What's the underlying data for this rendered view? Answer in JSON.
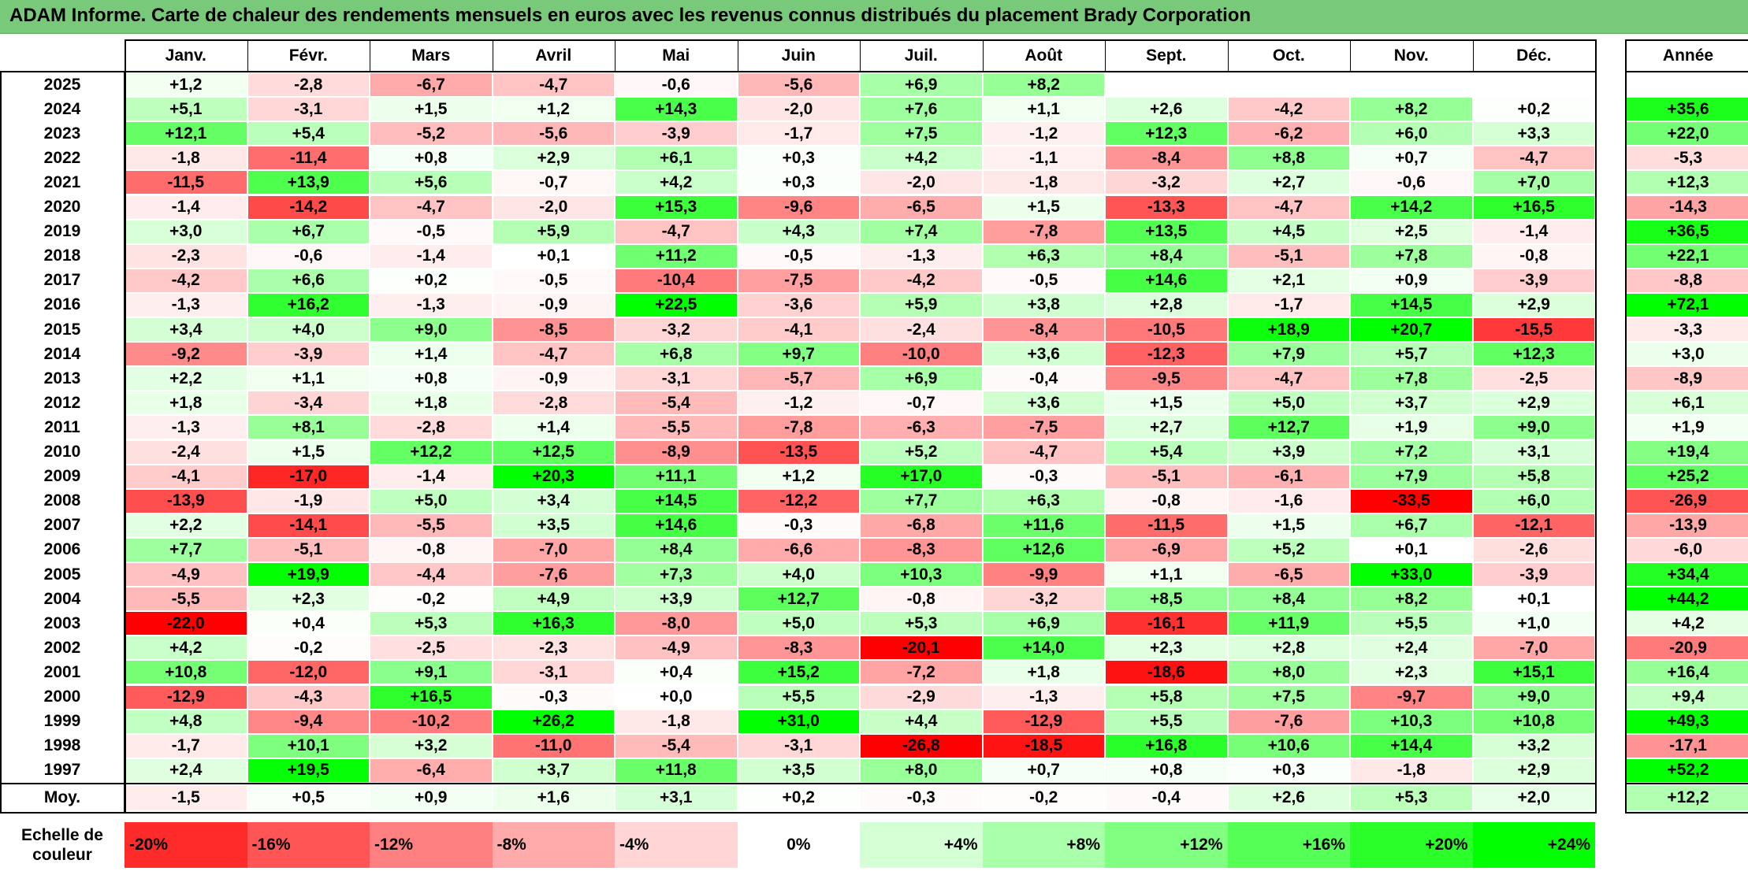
{
  "title": "ADAM Informe. Carte de chaleur des rendements mensuels en euros avec les revenus connus distribués du placement Brady Corporation",
  "colors": {
    "title_bg": "#79c97b",
    "negative": "#ff0000",
    "positive": "#00ff00",
    "neutral": "#ffffff"
  },
  "chart_data": {
    "type": "heatmap",
    "title": "ADAM Informe. Carte de chaleur des rendements mensuels en euros avec les revenus connus distribués du placement Brady Corporation",
    "months": [
      "Janv.",
      "Févr.",
      "Mars",
      "Avril",
      "Mai",
      "Juin",
      "Juil.",
      "Août",
      "Sept.",
      "Oct.",
      "Nov.",
      "Déc."
    ],
    "year_header": "Année",
    "average_label": "Moy.",
    "rows": [
      {
        "year": "2025",
        "values": [
          "+1,2",
          "-2,8",
          "-6,7",
          "-4,7",
          "-0,6",
          "-5,6",
          "+6,9",
          "+8,2",
          "",
          "",
          "",
          ""
        ],
        "annual": ""
      },
      {
        "year": "2024",
        "values": [
          "+5,1",
          "-3,1",
          "+1,5",
          "+1,2",
          "+14,3",
          "-2,0",
          "+7,6",
          "+1,1",
          "+2,6",
          "-4,2",
          "+8,2",
          "+0,2"
        ],
        "annual": "+35,6"
      },
      {
        "year": "2023",
        "values": [
          "+12,1",
          "+5,4",
          "-5,2",
          "-5,6",
          "-3,9",
          "-1,7",
          "+7,5",
          "-1,2",
          "+12,3",
          "-6,2",
          "+6,0",
          "+3,3"
        ],
        "annual": "+22,0"
      },
      {
        "year": "2022",
        "values": [
          "-1,8",
          "-11,4",
          "+0,8",
          "+2,9",
          "+6,1",
          "+0,3",
          "+4,2",
          "-1,1",
          "-8,4",
          "+8,8",
          "+0,7",
          "-4,7"
        ],
        "annual": "-5,3"
      },
      {
        "year": "2021",
        "values": [
          "-11,5",
          "+13,9",
          "+5,6",
          "-0,7",
          "+4,2",
          "+0,3",
          "-2,0",
          "-1,8",
          "-3,2",
          "+2,7",
          "-0,6",
          "+7,0"
        ],
        "annual": "+12,3"
      },
      {
        "year": "2020",
        "values": [
          "-1,4",
          "-14,2",
          "-4,7",
          "-2,0",
          "+15,3",
          "-9,6",
          "-6,5",
          "+1,5",
          "-13,3",
          "-4,7",
          "+14,2",
          "+16,5"
        ],
        "annual": "-14,3"
      },
      {
        "year": "2019",
        "values": [
          "+3,0",
          "+6,7",
          "-0,5",
          "+5,9",
          "-4,7",
          "+4,3",
          "+7,4",
          "-7,8",
          "+13,5",
          "+4,5",
          "+2,5",
          "-1,4"
        ],
        "annual": "+36,5"
      },
      {
        "year": "2018",
        "values": [
          "-2,3",
          "-0,6",
          "-1,4",
          "+0,1",
          "+11,2",
          "-0,5",
          "-1,3",
          "+6,3",
          "+8,4",
          "-5,1",
          "+7,8",
          "-0,8"
        ],
        "annual": "+22,1"
      },
      {
        "year": "2017",
        "values": [
          "-4,2",
          "+6,6",
          "+0,2",
          "-0,5",
          "-10,4",
          "-7,5",
          "-4,2",
          "-0,5",
          "+14,6",
          "+2,1",
          "+0,9",
          "-3,9"
        ],
        "annual": "-8,8"
      },
      {
        "year": "2016",
        "values": [
          "-1,3",
          "+16,2",
          "-1,3",
          "-0,9",
          "+22,5",
          "-3,6",
          "+5,9",
          "+3,8",
          "+2,8",
          "-1,7",
          "+14,5",
          "+2,9"
        ],
        "annual": "+72,1"
      },
      {
        "year": "2015",
        "values": [
          "+3,4",
          "+4,0",
          "+9,0",
          "-8,5",
          "-3,2",
          "-4,1",
          "-2,4",
          "-8,4",
          "-10,5",
          "+18,9",
          "+20,7",
          "-15,5"
        ],
        "annual": "-3,3"
      },
      {
        "year": "2014",
        "values": [
          "-9,2",
          "-3,9",
          "+1,4",
          "-4,7",
          "+6,8",
          "+9,7",
          "-10,0",
          "+3,6",
          "-12,3",
          "+7,9",
          "+5,7",
          "+12,3"
        ],
        "annual": "+3,0"
      },
      {
        "year": "2013",
        "values": [
          "+2,2",
          "+1,1",
          "+0,8",
          "-0,9",
          "-3,1",
          "-5,7",
          "+6,9",
          "-0,4",
          "-9,5",
          "-4,7",
          "+7,8",
          "-2,5"
        ],
        "annual": "-8,9"
      },
      {
        "year": "2012",
        "values": [
          "+1,8",
          "-3,4",
          "+1,8",
          "-2,8",
          "-5,4",
          "-1,2",
          "-0,7",
          "+3,6",
          "+1,5",
          "+5,0",
          "+3,7",
          "+2,9"
        ],
        "annual": "+6,1"
      },
      {
        "year": "2011",
        "values": [
          "-1,3",
          "+8,1",
          "-2,8",
          "+1,4",
          "-5,5",
          "-7,8",
          "-6,3",
          "-7,5",
          "+2,7",
          "+12,7",
          "+1,9",
          "+9,0"
        ],
        "annual": "+1,9"
      },
      {
        "year": "2010",
        "values": [
          "-2,4",
          "+1,5",
          "+12,2",
          "+12,5",
          "-8,9",
          "-13,5",
          "+5,2",
          "-4,7",
          "+5,4",
          "+3,9",
          "+7,2",
          "+3,1"
        ],
        "annual": "+19,4"
      },
      {
        "year": "2009",
        "values": [
          "-4,1",
          "-17,0",
          "-1,4",
          "+20,3",
          "+11,1",
          "+1,2",
          "+17,0",
          "-0,3",
          "-5,1",
          "-6,1",
          "+7,9",
          "+5,8"
        ],
        "annual": "+25,2"
      },
      {
        "year": "2008",
        "values": [
          "-13,9",
          "-1,9",
          "+5,0",
          "+3,4",
          "+14,5",
          "-12,2",
          "+7,7",
          "+6,3",
          "-0,8",
          "-1,6",
          "-33,5",
          "+6,0"
        ],
        "annual": "-26,9"
      },
      {
        "year": "2007",
        "values": [
          "+2,2",
          "-14,1",
          "-5,5",
          "+3,5",
          "+14,6",
          "-0,3",
          "-6,8",
          "+11,6",
          "-11,5",
          "+1,5",
          "+6,7",
          "-12,1"
        ],
        "annual": "-13,9"
      },
      {
        "year": "2006",
        "values": [
          "+7,7",
          "-5,1",
          "-0,8",
          "-7,0",
          "+8,4",
          "-6,6",
          "-8,3",
          "+12,6",
          "-6,9",
          "+5,2",
          "+0,1",
          "-2,6"
        ],
        "annual": "-6,0"
      },
      {
        "year": "2005",
        "values": [
          "-4,9",
          "+19,9",
          "-4,4",
          "-7,6",
          "+7,3",
          "+4,0",
          "+10,3",
          "-9,9",
          "+1,1",
          "-6,5",
          "+33,0",
          "-3,9"
        ],
        "annual": "+34,4"
      },
      {
        "year": "2004",
        "values": [
          "-5,5",
          "+2,3",
          "-0,2",
          "+4,9",
          "+3,9",
          "+12,7",
          "-0,8",
          "-3,2",
          "+8,5",
          "+8,4",
          "+8,2",
          "+0,1"
        ],
        "annual": "+44,2"
      },
      {
        "year": "2003",
        "values": [
          "-22,0",
          "+0,4",
          "+5,3",
          "+16,3",
          "-8,0",
          "+5,0",
          "+5,3",
          "+6,9",
          "-16,1",
          "+11,9",
          "+5,5",
          "+1,0"
        ],
        "annual": "+4,2"
      },
      {
        "year": "2002",
        "values": [
          "+4,2",
          "-0,2",
          "-2,5",
          "-2,3",
          "-4,9",
          "-8,3",
          "-20,1",
          "+14,0",
          "+2,3",
          "+2,8",
          "+2,4",
          "-7,0"
        ],
        "annual": "-20,9"
      },
      {
        "year": "2001",
        "values": [
          "+10,8",
          "-12,0",
          "+9,1",
          "-3,1",
          "+0,4",
          "+15,2",
          "-7,2",
          "+1,8",
          "-18,6",
          "+8,0",
          "+2,3",
          "+15,1"
        ],
        "annual": "+16,4"
      },
      {
        "year": "2000",
        "values": [
          "-12,9",
          "-4,3",
          "+16,5",
          "-0,3",
          "+0,0",
          "+5,5",
          "-2,9",
          "-1,3",
          "+5,8",
          "+7,5",
          "-9,7",
          "+9,0"
        ],
        "annual": "+9,4"
      },
      {
        "year": "1999",
        "values": [
          "+4,8",
          "-9,4",
          "-10,2",
          "+26,2",
          "-1,8",
          "+31,0",
          "+4,4",
          "-12,9",
          "+5,5",
          "-7,6",
          "+10,3",
          "+10,8"
        ],
        "annual": "+49,3"
      },
      {
        "year": "1998",
        "values": [
          "-1,7",
          "+10,1",
          "+3,2",
          "-11,0",
          "-5,4",
          "-3,1",
          "-26,8",
          "-18,5",
          "+16,8",
          "+10,6",
          "+14,4",
          "+3,2"
        ],
        "annual": "-17,1"
      },
      {
        "year": "1997",
        "values": [
          "+2,4",
          "+19,5",
          "-6,4",
          "+3,7",
          "+11,8",
          "+3,5",
          "+8,0",
          "+0,7",
          "+0,8",
          "+0,3",
          "-1,8",
          "+2,9"
        ],
        "annual": "+52,2"
      }
    ],
    "averages": {
      "values": [
        "-1,5",
        "+0,5",
        "+0,9",
        "+1,6",
        "+3,1",
        "+0,2",
        "-0,3",
        "-0,2",
        "-0,4",
        "+2,6",
        "+5,3",
        "+2,0"
      ],
      "annual": "+12,2"
    },
    "scale": {
      "label_line1": "Echelle de",
      "label_line2": "couleur",
      "steps": [
        {
          "label": "-20%",
          "value": -20
        },
        {
          "label": "-16%",
          "value": -16
        },
        {
          "label": "-12%",
          "value": -12
        },
        {
          "label": "-8%",
          "value": -8
        },
        {
          "label": "-4%",
          "value": -4
        },
        {
          "label": "0%",
          "value": 0
        },
        {
          "label": "+4%",
          "value": 4
        },
        {
          "label": "+8%",
          "value": 8
        },
        {
          "label": "+12%",
          "value": 12
        },
        {
          "label": "+16%",
          "value": 16
        },
        {
          "label": "+20%",
          "value": 20
        },
        {
          "label": "+24%",
          "value": 24
        }
      ]
    }
  }
}
